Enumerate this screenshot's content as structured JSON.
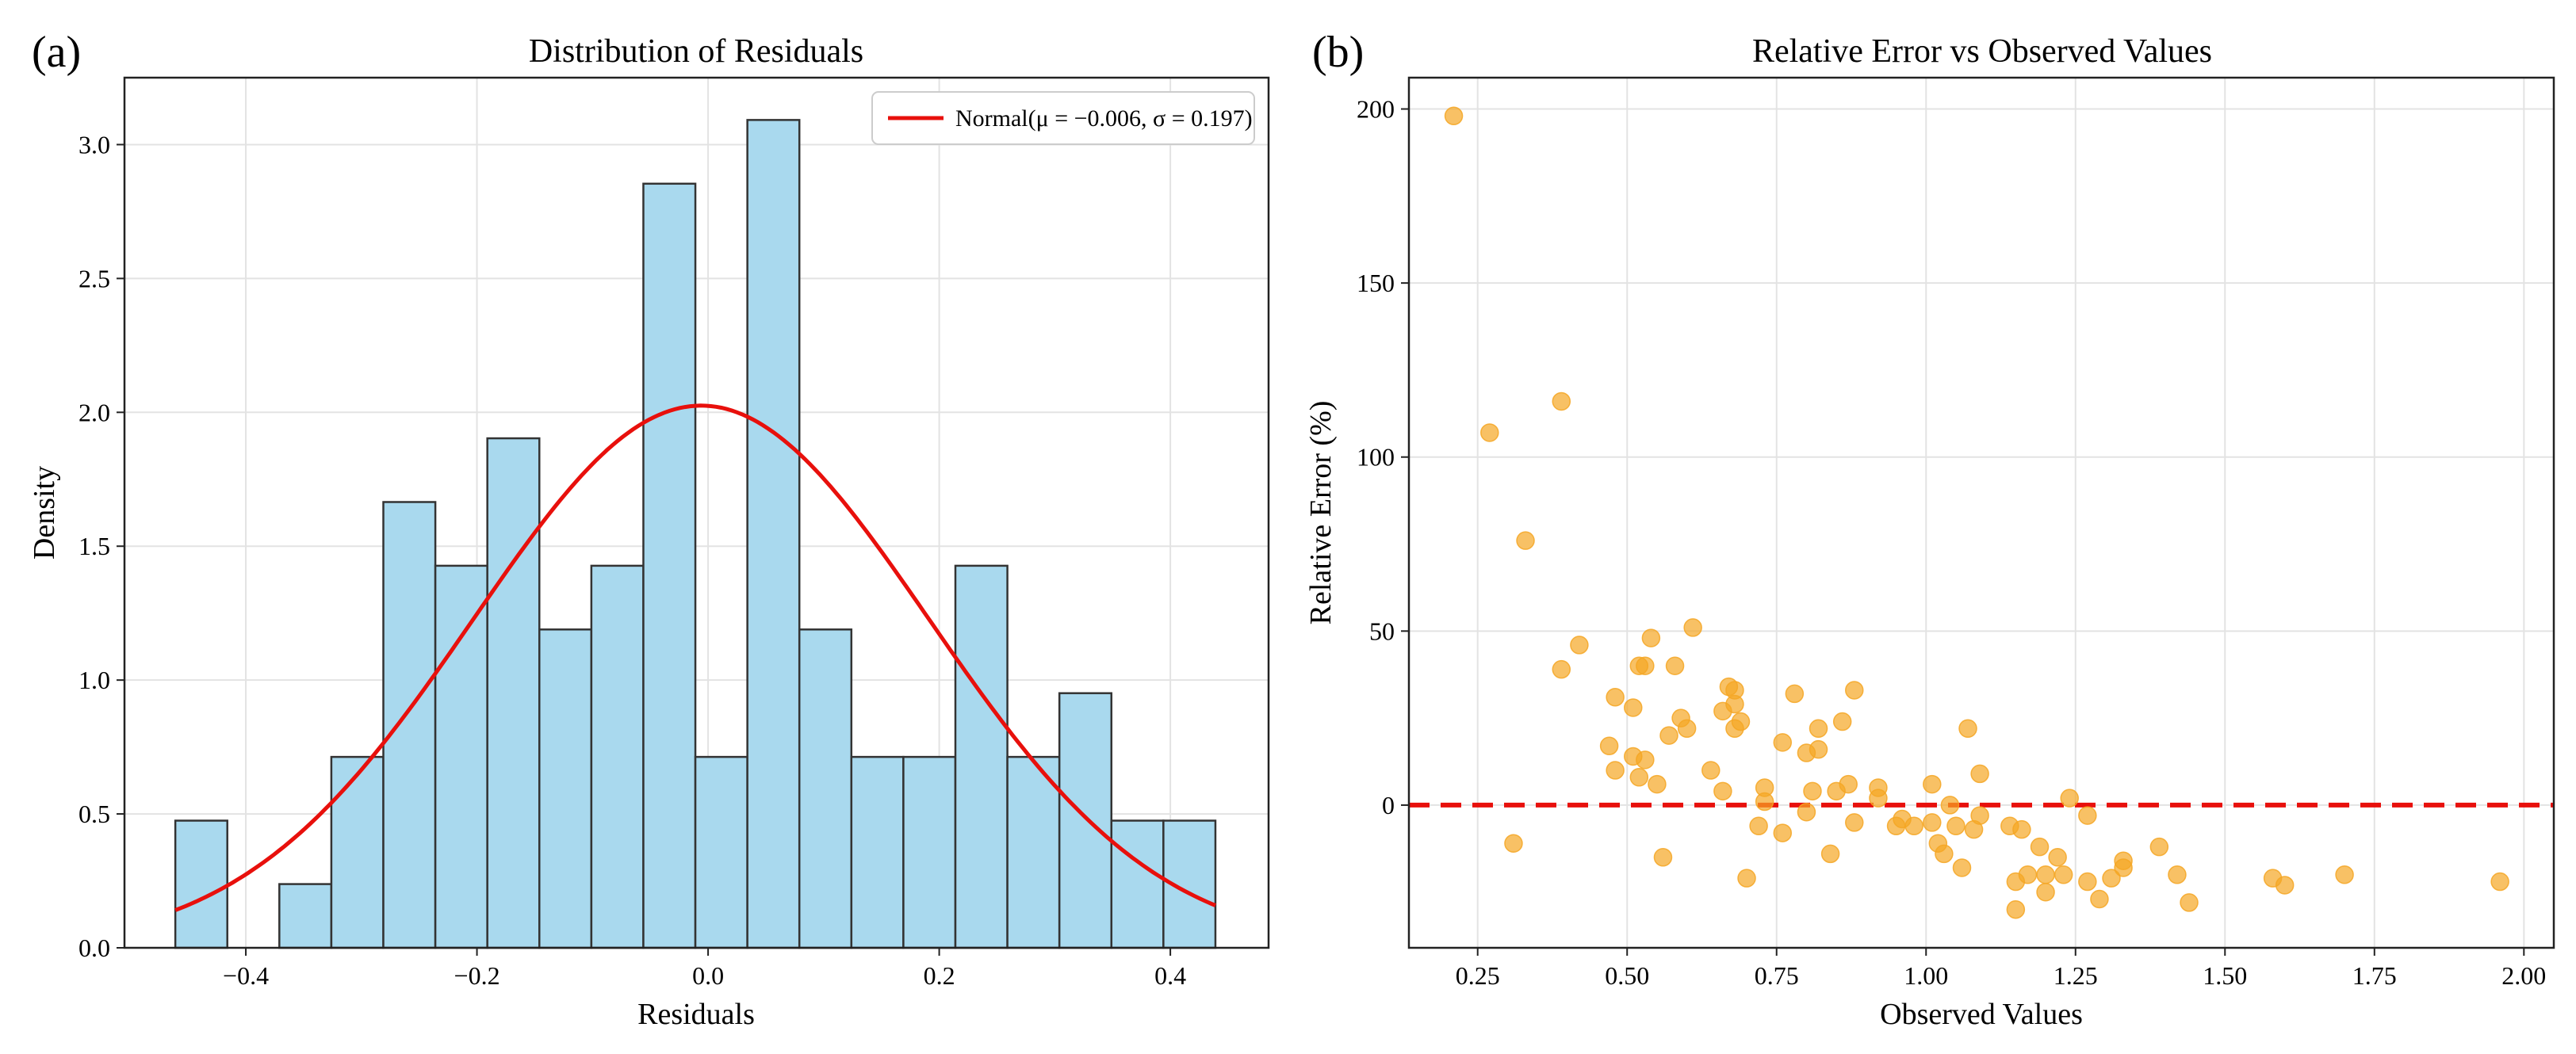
{
  "panels": [
    {
      "panel_label": "(a)",
      "chart_data": {
        "type": "bar",
        "title": "Distribution of Residuals",
        "xlabel": "Residuals",
        "ylabel": "Density",
        "xlim": [
          -0.505,
          0.485
        ],
        "ylim": [
          0,
          3.25
        ],
        "grid": true,
        "x_ticks": [
          "−0.4",
          "−0.2",
          "0.0",
          "0.2",
          "0.4"
        ],
        "x_tick_values": [
          -0.4,
          -0.2,
          0.0,
          0.2,
          0.4
        ],
        "y_ticks": [
          "0.0",
          "0.5",
          "1.0",
          "1.5",
          "2.0",
          "2.5",
          "3.0"
        ],
        "y_tick_values": [
          0.0,
          0.5,
          1.0,
          1.5,
          2.0,
          2.5,
          3.0
        ],
        "bin_start": -0.461,
        "bin_width": 0.045,
        "values": [
          0.475,
          0.0,
          0.238,
          0.713,
          1.665,
          1.427,
          1.903,
          1.189,
          1.427,
          2.854,
          0.713,
          3.092,
          1.189,
          0.713,
          0.713,
          1.427,
          0.713,
          0.951,
          0.475,
          0.475
        ],
        "bar_color": "#a9d9ee",
        "edge_color": "#333333",
        "fit_curve": {
          "name": "Normal(μ = −0.006, σ = 0.197)",
          "mu": -0.006,
          "sigma": 0.197,
          "color": "#e8100c"
        },
        "legend_position": "upper-right"
      }
    },
    {
      "panel_label": "(b)",
      "chart_data": {
        "type": "scatter",
        "title": "Relative Error vs Observed Values",
        "xlabel": "Observed Values",
        "ylabel": "Relative Error (%)",
        "xlim": [
          0.135,
          2.05
        ],
        "ylim": [
          -41,
          209
        ],
        "grid": true,
        "x_ticks": [
          "0.25",
          "0.50",
          "0.75",
          "1.00",
          "1.25",
          "1.50",
          "1.75",
          "2.00"
        ],
        "x_tick_values": [
          0.25,
          0.5,
          0.75,
          1.0,
          1.25,
          1.5,
          1.75,
          2.0
        ],
        "y_ticks": [
          "0",
          "50",
          "100",
          "150",
          "200"
        ],
        "y_tick_values": [
          0,
          50,
          100,
          150,
          200
        ],
        "point_color": "#f5a623",
        "reference_line": {
          "y": 0,
          "color": "#e8100c",
          "style": "dashed"
        },
        "points": [
          [
            0.21,
            198
          ],
          [
            0.27,
            107
          ],
          [
            0.31,
            -11
          ],
          [
            0.33,
            76
          ],
          [
            0.39,
            116
          ],
          [
            0.39,
            39
          ],
          [
            0.42,
            46
          ],
          [
            0.47,
            17
          ],
          [
            0.48,
            31
          ],
          [
            0.48,
            10
          ],
          [
            0.51,
            14
          ],
          [
            0.51,
            28
          ],
          [
            0.52,
            8
          ],
          [
            0.52,
            40
          ],
          [
            0.53,
            40
          ],
          [
            0.53,
            13
          ],
          [
            0.54,
            48
          ],
          [
            0.55,
            6
          ],
          [
            0.56,
            -15
          ],
          [
            0.57,
            20
          ],
          [
            0.58,
            40
          ],
          [
            0.59,
            25
          ],
          [
            0.6,
            22
          ],
          [
            0.61,
            51
          ],
          [
            0.64,
            10
          ],
          [
            0.66,
            4
          ],
          [
            0.66,
            27
          ],
          [
            0.67,
            34
          ],
          [
            0.68,
            29
          ],
          [
            0.68,
            33
          ],
          [
            0.68,
            22
          ],
          [
            0.69,
            24
          ],
          [
            0.7,
            -21
          ],
          [
            0.72,
            -6
          ],
          [
            0.73,
            5
          ],
          [
            0.73,
            1
          ],
          [
            0.76,
            18
          ],
          [
            0.76,
            -8
          ],
          [
            0.78,
            32
          ],
          [
            0.8,
            15
          ],
          [
            0.8,
            -2
          ],
          [
            0.81,
            4
          ],
          [
            0.82,
            22
          ],
          [
            0.82,
            16
          ],
          [
            0.84,
            -14
          ],
          [
            0.85,
            4
          ],
          [
            0.86,
            24
          ],
          [
            0.87,
            6
          ],
          [
            0.88,
            -5
          ],
          [
            0.88,
            33
          ],
          [
            0.92,
            5
          ],
          [
            0.92,
            2
          ],
          [
            0.95,
            -6
          ],
          [
            0.96,
            -4
          ],
          [
            0.98,
            -6
          ],
          [
            1.01,
            -5
          ],
          [
            1.01,
            6
          ],
          [
            1.02,
            -11
          ],
          [
            1.03,
            -14
          ],
          [
            1.04,
            0
          ],
          [
            1.05,
            -6
          ],
          [
            1.06,
            -18
          ],
          [
            1.07,
            22
          ],
          [
            1.08,
            -7
          ],
          [
            1.09,
            -3
          ],
          [
            1.09,
            9
          ],
          [
            1.14,
            -6
          ],
          [
            1.15,
            -30
          ],
          [
            1.15,
            -22
          ],
          [
            1.16,
            -7
          ],
          [
            1.17,
            -20
          ],
          [
            1.19,
            -12
          ],
          [
            1.2,
            -20
          ],
          [
            1.2,
            -25
          ],
          [
            1.22,
            -15
          ],
          [
            1.23,
            -20
          ],
          [
            1.24,
            2
          ],
          [
            1.27,
            -3
          ],
          [
            1.27,
            -22
          ],
          [
            1.29,
            -27
          ],
          [
            1.31,
            -21
          ],
          [
            1.33,
            -16
          ],
          [
            1.33,
            -18
          ],
          [
            1.39,
            -12
          ],
          [
            1.42,
            -20
          ],
          [
            1.44,
            -28
          ],
          [
            1.58,
            -21
          ],
          [
            1.6,
            -23
          ],
          [
            1.7,
            -20
          ],
          [
            1.96,
            -22
          ]
        ]
      }
    }
  ]
}
